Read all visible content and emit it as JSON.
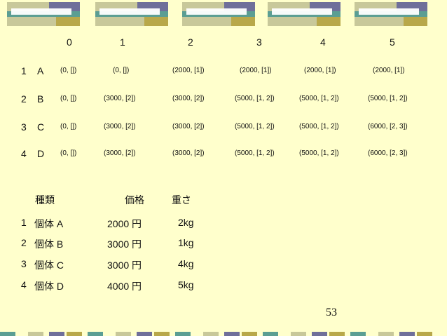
{
  "colors": {
    "background": "#FFFFCC",
    "purple": "#6F6F9A",
    "khaki": "#C8C89A",
    "teal": "#5B9E93",
    "olive": "#B8A84A"
  },
  "dp_table": {
    "col_headers": [
      "0",
      "1",
      "2",
      "3",
      "4",
      "5"
    ],
    "rows": [
      {
        "num": "1",
        "item": "A",
        "cells": [
          "(0, [])",
          "(0, [])",
          "(2000, [1])",
          "(2000, [1])",
          "(2000, [1])",
          "(2000, [1])"
        ]
      },
      {
        "num": "2",
        "item": "B",
        "cells": [
          "(0, [])",
          "(3000, [2])",
          "(3000, [2])",
          "(5000, [1, 2])",
          "(5000, [1, 2])",
          "(5000, [1, 2])"
        ]
      },
      {
        "num": "3",
        "item": "C",
        "cells": [
          "(0, [])",
          "(3000, [2])",
          "(3000, [2])",
          "(5000, [1, 2])",
          "(5000, [1, 2])",
          "(6000, [2, 3])"
        ]
      },
      {
        "num": "4",
        "item": "D",
        "cells": [
          "(0, [])",
          "(3000, [2])",
          "(3000, [2])",
          "(5000, [1, 2])",
          "(5000, [1, 2])",
          "(6000, [2, 3])"
        ]
      }
    ]
  },
  "item_table": {
    "headers": [
      "種類",
      "価格",
      "重さ"
    ],
    "rows": [
      {
        "num": "1",
        "name": "個体 A",
        "price": "2000 円",
        "weight": "2kg"
      },
      {
        "num": "2",
        "name": "個体 B",
        "price": "3000 円",
        "weight": "1kg"
      },
      {
        "num": "3",
        "name": "個体 C",
        "price": "3000 円",
        "weight": "4kg"
      },
      {
        "num": "4",
        "name": "個体 D",
        "price": "4000 円",
        "weight": "5kg"
      }
    ]
  },
  "page_number": "53"
}
